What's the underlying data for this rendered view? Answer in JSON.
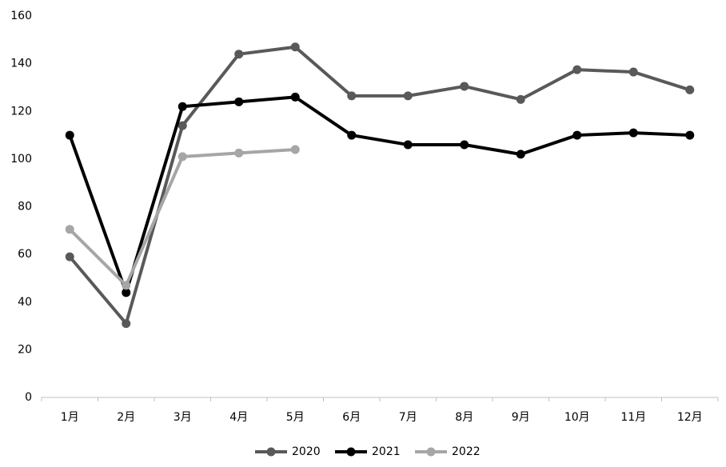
{
  "chart_data": {
    "type": "line",
    "categories": [
      "1月",
      "2月",
      "3月",
      "4月",
      "5月",
      "6月",
      "7月",
      "8月",
      "9月",
      "10月",
      "11月",
      "12月"
    ],
    "series": [
      {
        "name": "2020",
        "color": "#595959",
        "values": [
          59,
          31,
          114,
          144,
          147,
          126.5,
          126.5,
          130.5,
          125,
          137.5,
          136.5,
          129
        ]
      },
      {
        "name": "2021",
        "color": "#000000",
        "values": [
          110,
          44,
          122,
          124,
          126,
          110,
          106,
          106,
          102,
          110,
          111,
          110
        ]
      },
      {
        "name": "2022",
        "color": "#a6a6a6",
        "values": [
          70.5,
          47,
          101,
          102.5,
          104,
          null,
          null,
          null,
          null,
          null,
          null,
          null
        ]
      }
    ],
    "ylim": [
      0,
      160
    ],
    "yticks": [
      0,
      20,
      40,
      60,
      80,
      100,
      120,
      140,
      160
    ],
    "grid": false,
    "legend": "bottom"
  }
}
